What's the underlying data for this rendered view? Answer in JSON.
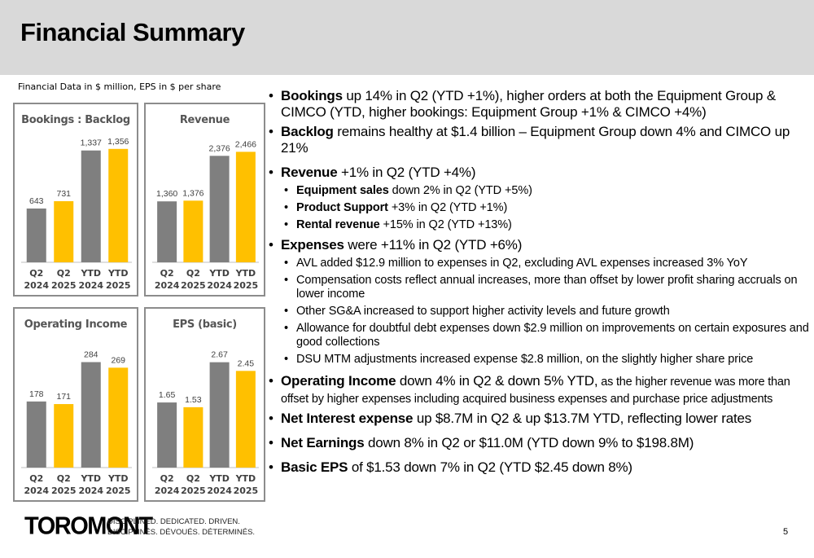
{
  "title": "Financial Summary",
  "units_note": "Financial Data in $ million, EPS in $ per share",
  "colors": {
    "prior": "#7f7f7f",
    "current": "#ffc000"
  },
  "charts": {
    "bookings": {
      "type": "bar",
      "title": "Bookings : Backlog",
      "categories": [
        [
          "Q2",
          "2024"
        ],
        [
          "Q2",
          "2025"
        ],
        [
          "YTD",
          "2024"
        ],
        [
          "YTD",
          "2025"
        ]
      ],
      "labels": [
        "643",
        "731",
        "1,337",
        "1,356"
      ],
      "values": [
        643,
        731,
        1337,
        1356
      ],
      "ymax": 1500
    },
    "revenue": {
      "type": "bar",
      "title": "Revenue",
      "categories": [
        [
          "Q2",
          "2024"
        ],
        [
          "Q2",
          "2025"
        ],
        [
          "YTD",
          "2024"
        ],
        [
          "YTD",
          "2025"
        ]
      ],
      "labels": [
        "1,360",
        "1,376",
        "2,376",
        "2,466"
      ],
      "values": [
        1360,
        1376,
        2376,
        2466
      ],
      "ymax": 2800
    },
    "operating_income": {
      "type": "bar",
      "title": "Operating Income",
      "categories": [
        [
          "Q2",
          "2024"
        ],
        [
          "Q2",
          "2025"
        ],
        [
          "YTD",
          "2024"
        ],
        [
          "YTD",
          "2025"
        ]
      ],
      "labels": [
        "178",
        "171",
        "284",
        "269"
      ],
      "values": [
        178,
        171,
        284,
        269
      ],
      "ymax": 340
    },
    "eps": {
      "type": "bar",
      "title": "EPS (basic)",
      "categories": [
        [
          "Q2",
          "2024"
        ],
        [
          "Q2",
          "2025"
        ],
        [
          "YTD",
          "2024"
        ],
        [
          "YTD",
          "2025"
        ]
      ],
      "labels": [
        "1.65",
        "1.53",
        "2.67",
        "2.45"
      ],
      "values": [
        1.65,
        1.53,
        2.67,
        2.45
      ],
      "ymax": 3.2
    }
  },
  "bullets": {
    "bookings": {
      "key": "Bookings",
      "text": " up 14% in Q2 (YTD +1%), higher orders at both the Equipment Group & CIMCO (YTD, higher bookings: Equipment Group +1% & CIMCO +4%)"
    },
    "backlog": {
      "key": "Backlog",
      "text": " remains healthy at $1.4 billion – Equipment Group down 4% and CIMCO up 21%"
    },
    "revenue": {
      "key": "Revenue",
      "text": " +1% in Q2 (YTD +4%)"
    },
    "revenue_subs": [
      {
        "key": "Equipment sales",
        "text": " down 2% in Q2 (YTD +5%)"
      },
      {
        "key": "Product Support",
        "text": " +3% in Q2 (YTD +1%)"
      },
      {
        "key": "Rental revenue",
        "text": " +15% in Q2 (YTD +13%)"
      }
    ],
    "expenses": {
      "key": "Expenses",
      "text": " were +11% in Q2 (YTD +6%)"
    },
    "expenses_subs": [
      "AVL added $12.9 million to expenses in Q2, excluding AVL expenses increased 3% YoY",
      "Compensation costs reflect annual increases, more than offset by lower profit sharing accruals on lower income",
      "Other SG&A increased to support higher activity levels and future growth",
      "Allowance for doubtful debt expenses down $2.9 million on improvements on certain exposures and good collections",
      "DSU MTM adjustments increased expense $2.8 million, on the slightly higher share price"
    ],
    "operating_income": {
      "key": "Operating Income",
      "text": " down 4% in Q2 & down 5% YTD,",
      "small": " as the higher revenue was more than offset by higher expenses including acquired business expenses and purchase price adjustments"
    },
    "net_interest": {
      "key": "Net Interest expense",
      "text": " up $8.7M in Q2 & up $13.7M YTD, reflecting lower rates"
    },
    "net_earnings": {
      "key": "Net Earnings",
      "text": " down 8% in Q2 or $11.0M (YTD down 9% to $198.8M)"
    },
    "basic_eps": {
      "key": "Basic EPS",
      "text": " of $1.53 down 7% in Q2 (YTD $2.45 down 8%)"
    }
  },
  "footer": {
    "logo": "TOROMONT",
    "tagline_en": "DISCIPLINED. DEDICATED. DRIVEN.",
    "tagline_fr": "DISCIPLINÉS. DÉVOUÉS. DÉTERMINÉS.",
    "page_number": "5"
  }
}
